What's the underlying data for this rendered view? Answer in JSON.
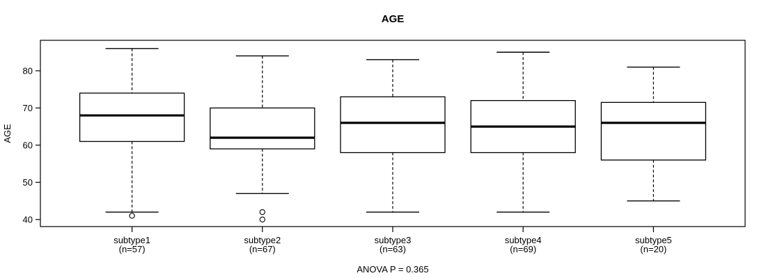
{
  "figure": {
    "background": "#ffffff",
    "line_color": "#000000"
  },
  "chart_data": {
    "type": "boxplot",
    "title": "AGE",
    "ylabel": "AGE",
    "xlabel": "",
    "annotation": "ANOVA P = 0.365",
    "grid": false,
    "legend": "none",
    "ylim": [
      38.1,
      88.2
    ],
    "yticks": [
      40,
      50,
      60,
      70,
      80
    ],
    "groups": [
      {
        "label": "subtype1",
        "sublabel": "(n=57)",
        "n": 57,
        "whisker_low": 42,
        "q1": 61,
        "median": 68,
        "q3": 74,
        "whisker_high": 86,
        "outliers": [
          41
        ]
      },
      {
        "label": "subtype2",
        "sublabel": "(n=67)",
        "n": 67,
        "whisker_low": 47,
        "q1": 59,
        "median": 62,
        "q3": 70,
        "whisker_high": 84,
        "outliers": [
          42,
          40
        ]
      },
      {
        "label": "subtype3",
        "sublabel": "(n=63)",
        "n": 63,
        "whisker_low": 42,
        "q1": 58,
        "median": 66,
        "q3": 73,
        "whisker_high": 83,
        "outliers": []
      },
      {
        "label": "subtype4",
        "sublabel": "(n=69)",
        "n": 69,
        "whisker_low": 42,
        "q1": 58,
        "median": 65,
        "q3": 72,
        "whisker_high": 85,
        "outliers": []
      },
      {
        "label": "subtype5",
        "sublabel": "(n=20)",
        "n": 20,
        "whisker_low": 45,
        "q1": 56,
        "median": 66,
        "q3": 71.5,
        "whisker_high": 81,
        "outliers": []
      }
    ]
  }
}
